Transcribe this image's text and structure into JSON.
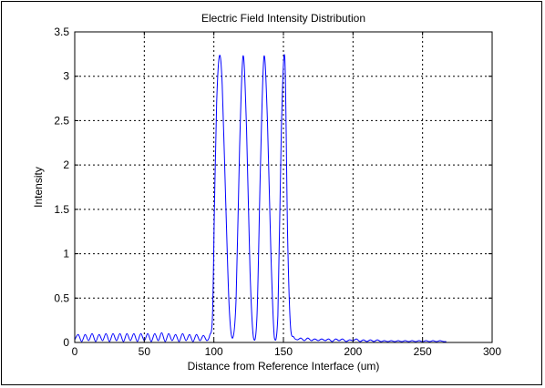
{
  "chart_data": {
    "type": "line",
    "title": "Electric Field Intensity Distribution",
    "xlabel": "Distance from Reference Interface (um)",
    "ylabel": "Intensity",
    "xlim": [
      0,
      300
    ],
    "ylim": [
      0,
      3.5
    ],
    "xticks": [
      0,
      50,
      100,
      150,
      200,
      250,
      300
    ],
    "yticks": [
      0,
      0.5,
      1,
      1.5,
      2,
      2.5,
      3,
      3.5
    ],
    "grid": true,
    "line_color": "#0000ff",
    "series": [
      {
        "x": [
          0,
          2.5,
          5,
          7.5,
          10,
          12.5,
          15,
          17.5,
          20,
          22.5,
          25,
          27.5,
          30,
          32.5,
          35,
          37.5,
          40,
          42.5,
          45,
          47.5,
          50,
          52.5,
          55,
          57.5,
          60,
          62.5,
          65,
          67.5,
          70,
          72.5,
          75,
          77.5,
          80,
          82.5,
          85,
          87.5,
          90,
          92.5,
          95,
          97,
          99,
          100.5,
          102,
          104,
          106,
          108.5,
          111,
          113.5,
          116,
          118.5,
          121,
          123.5,
          126,
          128.5,
          131,
          133.5,
          136,
          138.5,
          141,
          143.5,
          146,
          148.5,
          151,
          153,
          155,
          157.5,
          160,
          162.5,
          165,
          167.5,
          170,
          172.5,
          175,
          177.5,
          180,
          182.5,
          185,
          187.5,
          190,
          192.5,
          195,
          197.5,
          200,
          202.5,
          205,
          207.5,
          210,
          212.5,
          215,
          217.5,
          220,
          222.5,
          225,
          227.5,
          230,
          232.5,
          235,
          237.5,
          240,
          242.5,
          245,
          247.5,
          250,
          252.5,
          255,
          257.5,
          260,
          262.5,
          265,
          267
        ],
        "y": [
          0.03,
          0.09,
          0.01,
          0.09,
          0.02,
          0.1,
          0.01,
          0.09,
          0.02,
          0.1,
          0.01,
          0.1,
          0.02,
          0.1,
          0.01,
          0.1,
          0.02,
          0.1,
          0.01,
          0.1,
          0.02,
          0.1,
          0.01,
          0.1,
          0.02,
          0.11,
          0.01,
          0.1,
          0.02,
          0.09,
          0.01,
          0.1,
          0.02,
          0.09,
          0.01,
          0.09,
          0.02,
          0.08,
          0.02,
          0.08,
          0.3,
          1.6,
          2.7,
          3.23,
          2.9,
          1.6,
          0.4,
          0.05,
          0.5,
          2.2,
          3.23,
          2.4,
          0.8,
          0.05,
          0.3,
          2.0,
          3.22,
          2.5,
          1.0,
          0.05,
          0.3,
          2.4,
          3.2,
          1.2,
          0.2,
          0.06,
          0.03,
          0.05,
          0.02,
          0.05,
          0.02,
          0.04,
          0.02,
          0.04,
          0.02,
          0.04,
          0.01,
          0.04,
          0.02,
          0.04,
          0.01,
          0.03,
          0.02,
          0.04,
          0.01,
          0.03,
          0.01,
          0.03,
          0.01,
          0.03,
          0.01,
          0.02,
          0.01,
          0.02,
          0.01,
          0.02,
          0.01,
          0.02,
          0.01,
          0.02,
          0.01,
          0.02,
          0.01,
          0.02,
          0.01,
          0.02,
          0.01,
          0.02,
          0.01,
          0.01
        ]
      }
    ]
  }
}
